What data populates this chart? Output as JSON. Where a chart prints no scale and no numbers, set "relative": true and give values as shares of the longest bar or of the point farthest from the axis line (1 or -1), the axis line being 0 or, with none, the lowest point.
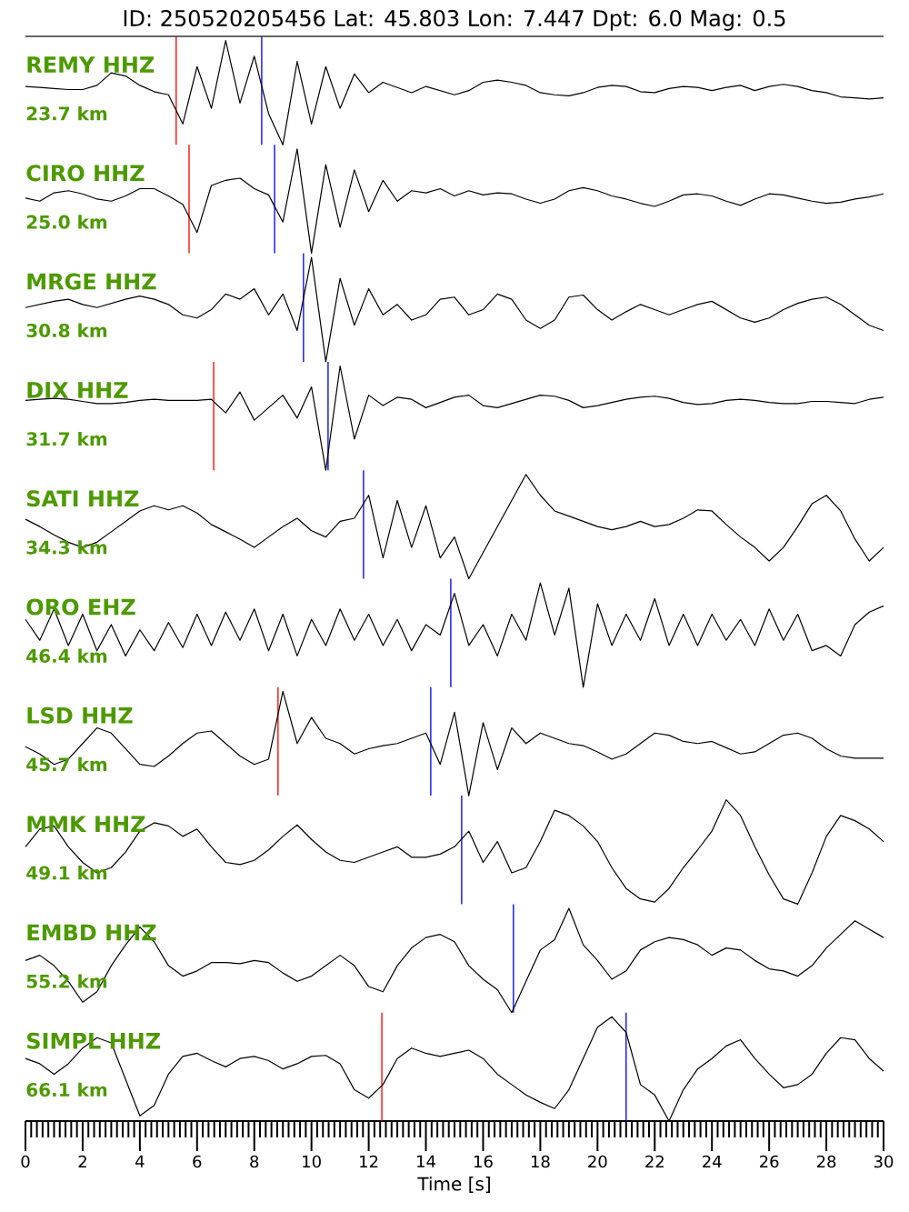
{
  "chart_data": [
    {
      "type": "line",
      "title": "ID: 250520205456 Lat: 45.803 Lon: 7.447 Dpt: 6.0 Mag: 0.5",
      "relative": true,
      "color": "#000000",
      "xlim": [
        0,
        30
      ],
      "tick_labels": false,
      "annotations": [
        "REMY HHZ",
        "23.7 km"
      ],
      "ref_lines": [
        {
          "axis": "x",
          "value": 5.27,
          "color": "#ff0000"
        },
        {
          "axis": "x",
          "value": 8.26,
          "color": "#0000ff"
        }
      ],
      "x": [
        0,
        0.5,
        1,
        1.5,
        2,
        2.5,
        3,
        3.5,
        4,
        4.5,
        5,
        5.5,
        6,
        6.5,
        7,
        7.5,
        8,
        8.5,
        9,
        9.5,
        10,
        10.5,
        11,
        11.5,
        12,
        12.5,
        13,
        13.5,
        14,
        14.5,
        15,
        15.5,
        16,
        16.5,
        17,
        17.5,
        18,
        18.5,
        19,
        19.5,
        20,
        20.5,
        21,
        21.5,
        22,
        22.5,
        23,
        23.5,
        24,
        24.5,
        25,
        25.5,
        26,
        26.5,
        27,
        27.5,
        28,
        28.5,
        29,
        29.5,
        30
      ],
      "values": [
        0.56,
        0.55,
        0.54,
        0.53,
        0.53,
        0.57,
        0.69,
        0.66,
        0.57,
        0.51,
        0.48,
        0.2,
        0.75,
        0.35,
        1,
        0.4,
        0.85,
        0.3,
        0,
        0.8,
        0.2,
        0.75,
        0.35,
        0.68,
        0.5,
        0.6,
        0.55,
        0.5,
        0.56,
        0.52,
        0.48,
        0.52,
        0.6,
        0.62,
        0.6,
        0.57,
        0.5,
        0.48,
        0.47,
        0.5,
        0.55,
        0.57,
        0.56,
        0.51,
        0.5,
        0.54,
        0.56,
        0.55,
        0.52,
        0.55,
        0.57,
        0.52,
        0.56,
        0.58,
        0.56,
        0.52,
        0.5,
        0.46,
        0.45,
        0.44,
        0.45
      ]
    },
    {
      "type": "line",
      "relative": true,
      "color": "#000000",
      "xlim": [
        0,
        30
      ],
      "tick_labels": false,
      "annotations": [
        "CIRO HHZ",
        "25.0 km"
      ],
      "ref_lines": [
        {
          "axis": "x",
          "value": 5.72,
          "color": "#ff0000"
        },
        {
          "axis": "x",
          "value": 8.71,
          "color": "#0000ff"
        }
      ],
      "x": [
        0,
        0.5,
        1,
        1.5,
        2,
        2.5,
        3,
        3.5,
        4,
        4.5,
        5,
        5.5,
        6,
        6.5,
        7,
        7.5,
        8,
        8.5,
        9,
        9.5,
        10,
        10.5,
        11,
        11.5,
        12,
        12.5,
        13,
        13.5,
        14,
        14.5,
        15,
        15.5,
        16,
        16.5,
        17,
        17.5,
        18,
        18.5,
        19,
        19.5,
        20,
        20.5,
        21,
        21.5,
        22,
        22.5,
        23,
        23.5,
        24,
        24.5,
        25,
        25.5,
        26,
        26.5,
        27,
        27.5,
        28,
        28.5,
        29,
        29.5,
        30
      ],
      "values": [
        0.53,
        0.5,
        0.58,
        0.6,
        0.57,
        0.52,
        0.5,
        0.55,
        0.62,
        0.62,
        0.55,
        0.47,
        0.2,
        0.65,
        0.7,
        0.72,
        0.62,
        0.56,
        0.3,
        1,
        0,
        0.85,
        0.25,
        0.8,
        0.4,
        0.7,
        0.5,
        0.6,
        0.58,
        0.62,
        0.55,
        0.6,
        0.56,
        0.58,
        0.57,
        0.52,
        0.48,
        0.52,
        0.6,
        0.63,
        0.6,
        0.55,
        0.52,
        0.48,
        0.45,
        0.5,
        0.56,
        0.57,
        0.55,
        0.5,
        0.46,
        0.52,
        0.57,
        0.56,
        0.53,
        0.5,
        0.48,
        0.49,
        0.52,
        0.54,
        0.57
      ]
    },
    {
      "type": "line",
      "relative": true,
      "color": "#000000",
      "xlim": [
        0,
        30
      ],
      "tick_labels": false,
      "annotations": [
        "MRGE HHZ",
        "30.8 km"
      ],
      "ref_lines": [
        {
          "axis": "x",
          "value": 9.72,
          "color": "#0000ff"
        }
      ],
      "x": [
        0,
        0.5,
        1,
        1.5,
        2,
        2.5,
        3,
        3.5,
        4,
        4.5,
        5,
        5.5,
        6,
        6.5,
        7,
        7.5,
        8,
        8.5,
        9,
        9.5,
        10,
        10.5,
        11,
        11.5,
        12,
        12.5,
        13,
        13.5,
        14,
        14.5,
        15,
        15.5,
        16,
        16.5,
        17,
        17.5,
        18,
        18.5,
        19,
        19.5,
        20,
        20.5,
        21,
        21.5,
        22,
        22.5,
        23,
        23.5,
        24,
        24.5,
        25,
        25.5,
        26,
        26.5,
        27,
        27.5,
        28,
        28.5,
        29,
        29.5,
        30
      ],
      "values": [
        0.52,
        0.55,
        0.58,
        0.6,
        0.55,
        0.52,
        0.56,
        0.6,
        0.63,
        0.6,
        0.55,
        0.45,
        0.42,
        0.5,
        0.65,
        0.6,
        0.7,
        0.45,
        0.65,
        0.3,
        1,
        0,
        0.8,
        0.35,
        0.7,
        0.45,
        0.55,
        0.4,
        0.45,
        0.6,
        0.62,
        0.45,
        0.5,
        0.65,
        0.6,
        0.4,
        0.32,
        0.4,
        0.62,
        0.64,
        0.5,
        0.4,
        0.48,
        0.55,
        0.5,
        0.45,
        0.5,
        0.55,
        0.58,
        0.5,
        0.42,
        0.38,
        0.42,
        0.5,
        0.56,
        0.6,
        0.62,
        0.55,
        0.45,
        0.35,
        0.3
      ]
    },
    {
      "type": "line",
      "relative": true,
      "color": "#000000",
      "xlim": [
        0,
        30
      ],
      "tick_labels": false,
      "annotations": [
        "DIX HHZ",
        "31.7 km"
      ],
      "ref_lines": [
        {
          "axis": "x",
          "value": 6.58,
          "color": "#ff0000"
        },
        {
          "axis": "x",
          "value": 10.58,
          "color": "#0000ff"
        }
      ],
      "x": [
        0,
        0.5,
        1,
        1.5,
        2,
        2.5,
        3,
        3.5,
        4,
        4.5,
        5,
        5.5,
        6,
        6.5,
        7,
        7.5,
        8,
        8.5,
        9,
        9.5,
        10,
        10.5,
        11,
        11.5,
        12,
        12.5,
        13,
        13.5,
        14,
        14.5,
        15,
        15.5,
        16,
        16.5,
        17,
        17.5,
        18,
        18.5,
        19,
        19.5,
        20,
        20.5,
        21,
        21.5,
        22,
        22.5,
        23,
        23.5,
        24,
        24.5,
        25,
        25.5,
        26,
        26.5,
        27,
        27.5,
        28,
        28.5,
        29,
        29.5,
        30
      ],
      "values": [
        0.67,
        0.68,
        0.69,
        0.68,
        0.66,
        0.64,
        0.64,
        0.65,
        0.67,
        0.68,
        0.67,
        0.67,
        0.67,
        0.68,
        0.55,
        0.75,
        0.48,
        0.6,
        0.72,
        0.5,
        0.8,
        0,
        1,
        0.3,
        0.72,
        0.62,
        0.7,
        0.68,
        0.6,
        0.65,
        0.7,
        0.72,
        0.62,
        0.6,
        0.64,
        0.68,
        0.72,
        0.71,
        0.67,
        0.6,
        0.62,
        0.65,
        0.68,
        0.7,
        0.71,
        0.69,
        0.65,
        0.63,
        0.64,
        0.67,
        0.68,
        0.67,
        0.65,
        0.64,
        0.64,
        0.66,
        0.66,
        0.65,
        0.64,
        0.68,
        0.7
      ]
    },
    {
      "type": "line",
      "relative": true,
      "color": "#000000",
      "xlim": [
        0,
        30
      ],
      "tick_labels": false,
      "annotations": [
        "SATI HHZ",
        "34.3 km"
      ],
      "ref_lines": [
        {
          "axis": "x",
          "value": 11.82,
          "color": "#0000ff"
        }
      ],
      "x": [
        0,
        0.5,
        1,
        1.5,
        2,
        2.5,
        3,
        3.5,
        4,
        4.5,
        5,
        5.5,
        6,
        6.5,
        7,
        7.5,
        8,
        8.5,
        9,
        9.5,
        10,
        10.5,
        11,
        11.5,
        12,
        12.5,
        13,
        13.5,
        14,
        14.5,
        15,
        15.5,
        16,
        16.5,
        17,
        17.5,
        18,
        18.5,
        19,
        19.5,
        20,
        20.5,
        21,
        21.5,
        22,
        22.5,
        23,
        23.5,
        24,
        24.5,
        25,
        25.5,
        26,
        26.5,
        27,
        27.5,
        28,
        28.5,
        29,
        29.5,
        30
      ],
      "values": [
        0.57,
        0.5,
        0.42,
        0.35,
        0.3,
        0.35,
        0.45,
        0.55,
        0.65,
        0.7,
        0.66,
        0.7,
        0.63,
        0.52,
        0.45,
        0.38,
        0.3,
        0.4,
        0.5,
        0.58,
        0.46,
        0.4,
        0.55,
        0.58,
        0.8,
        0.2,
        0.75,
        0.3,
        0.7,
        0.2,
        0.4,
        0,
        0.25,
        0.5,
        0.75,
        1,
        0.8,
        0.65,
        0.6,
        0.55,
        0.5,
        0.47,
        0.5,
        0.55,
        0.5,
        0.52,
        0.58,
        0.66,
        0.65,
        0.52,
        0.4,
        0.3,
        0.17,
        0.3,
        0.5,
        0.72,
        0.8,
        0.65,
        0.38,
        0.17,
        0.3
      ]
    },
    {
      "type": "line",
      "relative": true,
      "color": "#000000",
      "xlim": [
        0,
        30
      ],
      "tick_labels": false,
      "annotations": [
        "ORO EHZ",
        "46.4 km"
      ],
      "ref_lines": [
        {
          "axis": "x",
          "value": 14.87,
          "color": "#0000ff"
        }
      ],
      "x": [
        0,
        0.5,
        1,
        1.5,
        2,
        2.5,
        3,
        3.5,
        4,
        4.5,
        5,
        5.5,
        6,
        6.5,
        7,
        7.5,
        8,
        8.5,
        9,
        9.5,
        10,
        10.5,
        11,
        11.5,
        12,
        12.5,
        13,
        13.5,
        14,
        14.5,
        15,
        15.5,
        16,
        16.5,
        17,
        17.5,
        18,
        18.5,
        19,
        19.5,
        20,
        20.5,
        21,
        21.5,
        22,
        22.5,
        23,
        23.5,
        24,
        24.5,
        25,
        25.5,
        26,
        26.5,
        27,
        27.5,
        28,
        28.5,
        29,
        29.5,
        30
      ],
      "values": [
        0.65,
        0.45,
        0.75,
        0.4,
        0.7,
        0.35,
        0.6,
        0.3,
        0.55,
        0.35,
        0.62,
        0.38,
        0.7,
        0.4,
        0.72,
        0.45,
        0.75,
        0.35,
        0.7,
        0.3,
        0.65,
        0.4,
        0.75,
        0.45,
        0.7,
        0.4,
        0.65,
        0.35,
        0.6,
        0.5,
        0.9,
        0.4,
        0.6,
        0.3,
        0.7,
        0.45,
        1,
        0.5,
        0.95,
        0,
        0.8,
        0.4,
        0.7,
        0.45,
        0.85,
        0.4,
        0.7,
        0.4,
        0.7,
        0.45,
        0.65,
        0.4,
        0.75,
        0.45,
        0.7,
        0.35,
        0.4,
        0.3,
        0.6,
        0.72,
        0.78
      ]
    },
    {
      "type": "line",
      "relative": true,
      "color": "#000000",
      "xlim": [
        0,
        30
      ],
      "tick_labels": false,
      "annotations": [
        "LSD HHZ",
        "45.7 km"
      ],
      "ref_lines": [
        {
          "axis": "x",
          "value": 8.83,
          "color": "#ff0000"
        },
        {
          "axis": "x",
          "value": 14.17,
          "color": "#0000ff"
        }
      ],
      "x": [
        0,
        0.5,
        1,
        1.5,
        2,
        2.5,
        3,
        3.5,
        4,
        4.5,
        5,
        5.5,
        6,
        6.5,
        7,
        7.5,
        8,
        8.5,
        9,
        9.5,
        10,
        10.5,
        11,
        11.5,
        12,
        12.5,
        13,
        13.5,
        14,
        14.5,
        15,
        15.5,
        16,
        16.5,
        17,
        17.5,
        18,
        18.5,
        19,
        19.5,
        20,
        20.5,
        21,
        21.5,
        22,
        22.5,
        23,
        23.5,
        24,
        24.5,
        25,
        25.5,
        26,
        26.5,
        27,
        27.5,
        28,
        28.5,
        29,
        29.5,
        30
      ],
      "values": [
        0.47,
        0.4,
        0.3,
        0.35,
        0.5,
        0.65,
        0.6,
        0.45,
        0.3,
        0.28,
        0.38,
        0.5,
        0.6,
        0.62,
        0.5,
        0.38,
        0.3,
        0.35,
        1,
        0.5,
        0.75,
        0.55,
        0.5,
        0.4,
        0.45,
        0.48,
        0.5,
        0.55,
        0.6,
        0.3,
        0.8,
        0,
        0.7,
        0.25,
        0.65,
        0.5,
        0.6,
        0.55,
        0.5,
        0.48,
        0.42,
        0.35,
        0.4,
        0.5,
        0.6,
        0.58,
        0.52,
        0.5,
        0.52,
        0.46,
        0.4,
        0.42,
        0.5,
        0.58,
        0.6,
        0.55,
        0.45,
        0.38,
        0.36,
        0.36,
        0.36
      ]
    },
    {
      "type": "line",
      "relative": true,
      "color": "#000000",
      "xlim": [
        0,
        30
      ],
      "tick_labels": false,
      "annotations": [
        "MMK HHZ",
        "49.1 km"
      ],
      "ref_lines": [
        {
          "axis": "x",
          "value": 15.25,
          "color": "#0000ff"
        }
      ],
      "x": [
        0,
        0.5,
        1,
        1.5,
        2,
        2.5,
        3,
        3.5,
        4,
        4.5,
        5,
        5.5,
        6,
        6.5,
        7,
        7.5,
        8,
        8.5,
        9,
        9.5,
        10,
        10.5,
        11,
        11.5,
        12,
        12.5,
        13,
        13.5,
        14,
        14.5,
        15,
        15.5,
        16,
        16.5,
        17,
        17.5,
        18,
        18.5,
        19,
        19.5,
        20,
        20.5,
        21,
        21.5,
        22,
        22.5,
        23,
        23.5,
        24,
        24.5,
        25,
        25.5,
        26,
        26.5,
        27,
        27.5,
        28,
        28.5,
        29,
        29.5,
        30
      ],
      "values": [
        0.55,
        0.72,
        0.75,
        0.55,
        0.4,
        0.3,
        0.35,
        0.5,
        0.7,
        0.78,
        0.75,
        0.65,
        0.72,
        0.55,
        0.4,
        0.38,
        0.42,
        0.52,
        0.65,
        0.76,
        0.62,
        0.5,
        0.42,
        0.4,
        0.45,
        0.5,
        0.55,
        0.45,
        0.45,
        0.48,
        0.55,
        0.7,
        0.4,
        0.6,
        0.3,
        0.35,
        0.6,
        0.9,
        0.85,
        0.75,
        0.6,
        0.35,
        0.15,
        0.05,
        0.02,
        0.15,
        0.35,
        0.52,
        0.7,
        1,
        0.85,
        0.55,
        0.28,
        0.05,
        0,
        0.3,
        0.65,
        0.85,
        0.8,
        0.72,
        0.6
      ]
    },
    {
      "type": "line",
      "relative": true,
      "color": "#000000",
      "xlim": [
        0,
        30
      ],
      "tick_labels": false,
      "annotations": [
        "EMBD HHZ",
        "55.2 km"
      ],
      "ref_lines": [
        {
          "axis": "x",
          "value": 17.06,
          "color": "#0000ff"
        }
      ],
      "x": [
        0,
        0.5,
        1,
        1.5,
        2,
        2.5,
        3,
        3.5,
        4,
        4.5,
        5,
        5.5,
        6,
        6.5,
        7,
        7.5,
        8,
        8.5,
        9,
        9.5,
        10,
        10.5,
        11,
        11.5,
        12,
        12.5,
        13,
        13.5,
        14,
        14.5,
        15,
        15.5,
        16,
        16.5,
        17,
        17.5,
        18,
        18.5,
        19,
        19.5,
        20,
        20.5,
        21,
        21.5,
        22,
        22.5,
        23,
        23.5,
        24,
        24.5,
        25,
        25.5,
        26,
        26.5,
        27,
        27.5,
        28,
        28.5,
        29,
        29.5,
        30
      ],
      "values": [
        0.5,
        0.55,
        0.45,
        0.3,
        0.1,
        0.2,
        0.45,
        0.65,
        0.82,
        0.68,
        0.45,
        0.35,
        0.4,
        0.48,
        0.48,
        0.47,
        0.5,
        0.48,
        0.38,
        0.3,
        0.35,
        0.45,
        0.55,
        0.45,
        0.25,
        0.2,
        0.45,
        0.62,
        0.72,
        0.75,
        0.68,
        0.45,
        0.32,
        0.22,
        0,
        0.3,
        0.6,
        0.7,
        1,
        0.65,
        0.5,
        0.32,
        0.4,
        0.6,
        0.68,
        0.72,
        0.7,
        0.65,
        0.55,
        0.62,
        0.6,
        0.5,
        0.42,
        0.4,
        0.35,
        0.45,
        0.62,
        0.75,
        0.88,
        0.8,
        0.72
      ]
    },
    {
      "type": "line",
      "relative": true,
      "color": "#000000",
      "xlim": [
        0,
        30
      ],
      "tick_labels": "x",
      "xlabel": "Time [s]",
      "annotations": [
        "SIMPL HHZ",
        "66.1 km"
      ],
      "ref_lines": [
        {
          "axis": "x",
          "value": 12.46,
          "color": "#ff0000"
        },
        {
          "axis": "x",
          "value": 21.0,
          "color": "#0000ff"
        }
      ],
      "x": [
        0,
        0.5,
        1,
        1.5,
        2,
        2.5,
        3,
        3.5,
        4,
        4.5,
        5,
        5.5,
        6,
        6.5,
        7,
        7.5,
        8,
        8.5,
        9,
        9.5,
        10,
        10.5,
        11,
        11.5,
        12,
        12.5,
        13,
        13.5,
        14,
        14.5,
        15,
        15.5,
        16,
        16.5,
        17,
        17.5,
        18,
        18.5,
        19,
        19.5,
        20,
        20.5,
        21,
        21.5,
        22,
        22.5,
        23,
        23.5,
        24,
        24.5,
        25,
        25.5,
        26,
        26.5,
        27,
        27.5,
        28,
        28.5,
        29,
        29.5,
        30
      ],
      "values": [
        0.6,
        0.55,
        0.45,
        0.55,
        0.7,
        0.8,
        0.75,
        0.4,
        0.05,
        0.15,
        0.45,
        0.62,
        0.65,
        0.58,
        0.52,
        0.6,
        0.62,
        0.58,
        0.5,
        0.55,
        0.62,
        0.63,
        0.55,
        0.3,
        0.22,
        0.35,
        0.6,
        0.7,
        0.65,
        0.62,
        0.65,
        0.68,
        0.6,
        0.45,
        0.35,
        0.25,
        0.18,
        0.12,
        0.3,
        0.6,
        0.9,
        1,
        0.85,
        0.35,
        0.25,
        0,
        0.3,
        0.5,
        0.6,
        0.72,
        0.78,
        0.6,
        0.45,
        0.32,
        0.35,
        0.45,
        0.65,
        0.8,
        0.78,
        0.6,
        0.48
      ],
      "xticks": [
        0,
        2,
        4,
        6,
        8,
        10,
        12,
        14,
        16,
        18,
        20,
        22,
        24,
        26,
        28,
        30
      ]
    }
  ]
}
